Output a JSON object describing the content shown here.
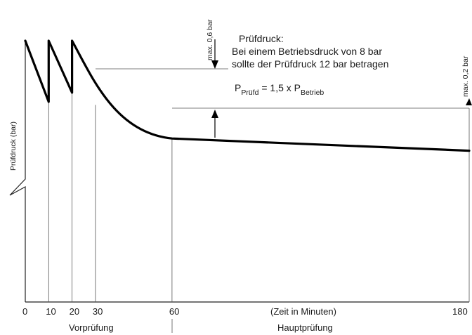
{
  "chart_data": {
    "type": "line",
    "ylabel": "Prüfdruck (bar)",
    "xlabel": "(Zeit in Minuten)",
    "x_ticks": [
      "0",
      "10",
      "20",
      "30",
      "60",
      "180"
    ],
    "phases": [
      {
        "label": "Vorprüfung"
      },
      {
        "label": "Hauptprüfung"
      }
    ],
    "annotation": {
      "line1": "Prüfdruck:",
      "line2": "Bei einem Betriebsdruck von 8 bar",
      "line3": "sollte der Prüfdruck 12 bar betragen",
      "formula_p1": "P",
      "formula_sub1": "Prüfd",
      "formula_mid": " = 1,5 x P",
      "formula_sub2": "Betrieb"
    },
    "markers": {
      "max_vor": "max. 0,6 bar",
      "max_haupt": "max. 0,2 bar"
    },
    "series": [
      {
        "x": [
          0,
          10,
          10,
          20,
          20,
          30,
          60,
          180
        ],
        "y": [
          12.6,
          11.6,
          12.6,
          11.75,
          12.6,
          11.55,
          11.0,
          10.8
        ]
      }
    ]
  }
}
